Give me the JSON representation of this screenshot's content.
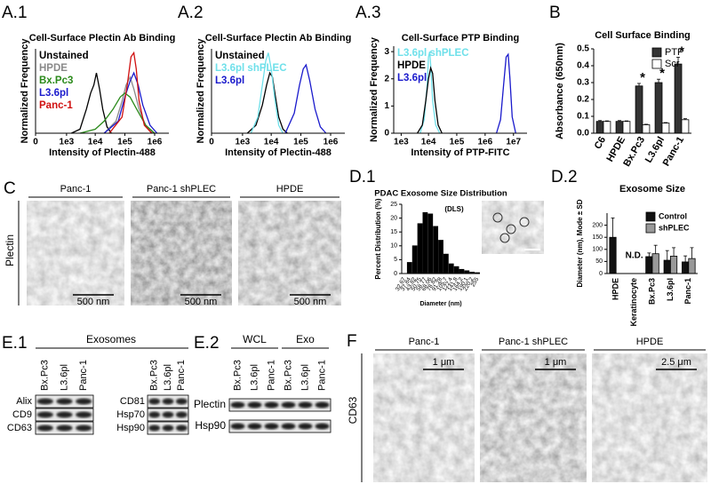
{
  "chart_data": [
    {
      "type": "line",
      "panel": "A.1",
      "title": "Cell-Surface Plectin Ab Binding",
      "x_label": "Intensity of Plectin-488",
      "y_label": "Normalized Frequency",
      "xscale": "symlog",
      "xlim": [
        0,
        3000000
      ],
      "xticks": [
        0,
        {
          "value": 1000,
          "label": "1e3"
        },
        {
          "value": 10000,
          "label": "1e4"
        },
        {
          "value": 100000,
          "label": "1e5"
        },
        {
          "value": 1000000,
          "label": "1e6"
        }
      ],
      "ylim": [
        0,
        1.05
      ],
      "legend": "upper left",
      "series": [
        {
          "name": "Unstained",
          "color": "#000000",
          "x": [
            1500,
            3000,
            5000,
            7000,
            9000,
            11000,
            14000,
            18000,
            25000,
            35000
          ],
          "values": [
            0,
            0.05,
            0.3,
            0.5,
            0.6,
            0.75,
            0.55,
            0.3,
            0.08,
            0
          ]
        },
        {
          "name": "HPDE",
          "color": "#8a8a8a",
          "x": [
            20000,
            50000,
            80000,
            110000,
            150000,
            200000,
            300000,
            500000,
            900000
          ],
          "values": [
            0,
            0.15,
            0.4,
            0.6,
            0.7,
            0.55,
            0.3,
            0.1,
            0
          ]
        },
        {
          "name": "Bx.Pc3",
          "color": "#2a8a1a",
          "x": [
            3000,
            10000,
            20000,
            40000,
            70000,
            100000,
            150000,
            250000,
            500000,
            1000000
          ],
          "values": [
            0,
            0.05,
            0.15,
            0.3,
            0.45,
            0.5,
            0.45,
            0.3,
            0.1,
            0
          ]
        },
        {
          "name": "L3.6pl",
          "color": "#1a1acc",
          "x": [
            20000,
            60000,
            100000,
            150000,
            200000,
            280000,
            400000,
            700000,
            1200000
          ],
          "values": [
            0,
            0.15,
            0.45,
            0.65,
            0.75,
            0.6,
            0.35,
            0.1,
            0
          ]
        },
        {
          "name": "Panc-1",
          "color": "#d01010",
          "x": [
            30000,
            80000,
            120000,
            160000,
            200000,
            240000,
            300000,
            450000,
            800000
          ],
          "values": [
            0,
            0.2,
            0.6,
            0.95,
            1.0,
            0.8,
            0.4,
            0.1,
            0
          ]
        }
      ]
    },
    {
      "type": "line",
      "panel": "A.2",
      "title": "Cell-Surface Plectin Ab Binding",
      "x_label": "Intensity of Plectin-488",
      "y_label": "Normalized Frequency",
      "xscale": "symlog",
      "xlim": [
        0,
        3000000
      ],
      "xticks": [
        0,
        {
          "value": 1000,
          "label": "1e3"
        },
        {
          "value": 10000,
          "label": "1e4"
        },
        {
          "value": 100000,
          "label": "1e5"
        },
        {
          "value": 1000000,
          "label": "1e6"
        }
      ],
      "ylim": [
        0,
        1.05
      ],
      "legend": "upper left",
      "series": [
        {
          "name": "Unstained",
          "color": "#000000",
          "x": [
            1500,
            3000,
            5000,
            7000,
            9000,
            11000,
            14000,
            18000,
            25000,
            35000
          ],
          "values": [
            0,
            0.1,
            0.35,
            0.6,
            0.75,
            0.7,
            0.45,
            0.2,
            0.05,
            0
          ]
        },
        {
          "name": "L3.6pl shPLEC",
          "color": "#6fe0ea",
          "x": [
            2000,
            3500,
            5000,
            6500,
            8000,
            10000,
            13000,
            18000,
            25000
          ],
          "values": [
            0,
            0.2,
            0.6,
            0.9,
            1.0,
            0.8,
            0.45,
            0.1,
            0
          ]
        },
        {
          "name": "L3.6pl",
          "color": "#1a1acc",
          "x": [
            30000,
            60000,
            90000,
            120000,
            150000,
            200000,
            300000,
            450000,
            700000
          ],
          "values": [
            0,
            0.25,
            0.6,
            0.8,
            0.85,
            0.65,
            0.3,
            0.08,
            0
          ]
        }
      ]
    },
    {
      "type": "line",
      "panel": "A.3",
      "title": "Cell-Surface PTP Binding",
      "x_label": "Intensity of PTP-FITC",
      "y_label": "Normalized Frequency",
      "xscale": "symlog",
      "xlim": [
        500,
        30000000
      ],
      "xticks": [
        {
          "value": 1000,
          "label": "1e3"
        },
        {
          "value": 10000,
          "label": "1e4"
        },
        {
          "value": 100000,
          "label": "1e5"
        },
        {
          "value": 1000000,
          "label": "1e6"
        },
        {
          "value": 10000000,
          "label": "1e7"
        }
      ],
      "ylim": [
        0,
        3.2
      ],
      "yticks": [
        0,
        1,
        2,
        3
      ],
      "legend": "upper left",
      "series": [
        {
          "name": "L3.6pl shPLEC",
          "color": "#6fe0ea",
          "x": [
            5000,
            7000,
            9000,
            10000,
            11000,
            12000,
            14000,
            18000,
            25000
          ],
          "values": [
            0,
            0.5,
            1.8,
            2.8,
            3.0,
            2.5,
            1.2,
            0.3,
            0
          ]
        },
        {
          "name": "HPDE",
          "color": "#000000",
          "x": [
            4000,
            6000,
            8000,
            10000,
            12000,
            14000,
            17000,
            22000,
            30000
          ],
          "values": [
            0,
            0.3,
            1.2,
            2.0,
            2.4,
            2.2,
            1.2,
            0.3,
            0
          ]
        },
        {
          "name": "L3.6pl",
          "color": "#1a1acc",
          "x": [
            2500000,
            3500000,
            4500000,
            5500000,
            6500000,
            7500000,
            9000000,
            12000000
          ],
          "values": [
            0,
            0.5,
            1.8,
            2.8,
            2.9,
            2.0,
            0.6,
            0
          ]
        }
      ]
    },
    {
      "type": "bar",
      "panel": "B",
      "title": "Cell Surface Binding",
      "y_label": "Absorbance (650nm)",
      "categories": [
        "C6",
        "HPDE",
        "Bx.Pc3",
        "L3.6pl",
        "Panc-1"
      ],
      "ylim": [
        0,
        0.5
      ],
      "yticks": [
        {
          "value": 0,
          "label": "0.0"
        },
        0.1,
        0.2,
        0.3,
        0.4,
        0.5
      ],
      "legend": "upper right",
      "category_notes": [
        null,
        null,
        "*",
        "*",
        "*"
      ],
      "series": [
        {
          "name": "PTP",
          "color": "#333333",
          "values": [
            0.07,
            0.07,
            0.28,
            0.3,
            0.41
          ],
          "errors": [
            0.005,
            0.005,
            0.015,
            0.02,
            0.04
          ]
        },
        {
          "name": "Scr",
          "color": "#ffffff",
          "values": [
            0.07,
            0.07,
            0.05,
            0.06,
            0.08
          ],
          "errors": [
            0.003,
            0.003,
            0.003,
            0.003,
            0.006
          ]
        }
      ]
    },
    {
      "type": "bar",
      "panel": "D.1",
      "title": "PDAC Exosome Size Distribution",
      "subtitle": "(DLS)",
      "x_label": "Diameter (nm)",
      "y_label": "Percent Distribution (%)",
      "categories": [
        "32.67",
        "37.84",
        "43.82",
        "50.75",
        "58.77",
        "68.06",
        "78.82",
        "91.28",
        "105.7",
        "122.4",
        "141.8",
        "164.2",
        "190.1",
        "220.2",
        "255"
      ],
      "values": [
        0,
        4,
        10,
        18,
        22,
        21.5,
        17,
        12,
        7,
        3.5,
        2.5,
        1.5,
        1,
        0.5,
        0.3
      ],
      "color": "#000000",
      "ylim": [
        0,
        25
      ],
      "yticks": [
        0,
        5,
        10,
        15,
        20,
        25
      ]
    },
    {
      "type": "bar",
      "panel": "D.2",
      "title": "Exosome Size",
      "y_label": "Diameter (nm), Mode ± SD",
      "categories": [
        "HPDE",
        "Keratinocyte",
        "Bx.Pc3",
        "L3.6pl",
        "Panc-1"
      ],
      "ylim": [
        0,
        250
      ],
      "yticks": [
        0,
        50,
        100,
        150,
        200
      ],
      "legend": "upper right",
      "category_notes": [
        null,
        "N.D.",
        null,
        null,
        null
      ],
      "series": [
        {
          "name": "Control",
          "color": "#111111",
          "values": [
            150,
            null,
            70,
            55,
            48
          ],
          "errors": [
            80,
            null,
            15,
            40,
            25
          ]
        },
        {
          "name": "shPLEC",
          "color": "#999999",
          "values": [
            null,
            null,
            82,
            72,
            62
          ],
          "errors": [
            null,
            null,
            35,
            35,
            45
          ]
        }
      ]
    }
  ],
  "micrographs": {
    "C": {
      "panel": "C",
      "stain": "Plectin",
      "images": [
        {
          "title": "Panc-1",
          "scale": "500 nm"
        },
        {
          "title": "Panc-1 shPLEC",
          "scale": "500 nm"
        },
        {
          "title": "HPDE",
          "scale": "500 nm"
        }
      ]
    },
    "F": {
      "panel": "F",
      "stain": "CD63",
      "images": [
        {
          "title": "Panc-1",
          "scale": "1 μm"
        },
        {
          "title": "Panc-1 shPLEC",
          "scale": "1 μm"
        },
        {
          "title": "HPDE",
          "scale": "2.5 μm"
        }
      ]
    }
  },
  "blots": {
    "E1": {
      "panel": "E.1",
      "header": "Exosomes",
      "blocks": [
        {
          "lanes": [
            "Bx.Pc3",
            "L3.6pl",
            "Panc-1"
          ],
          "rows": [
            "Alix",
            "CD9",
            "CD63"
          ]
        },
        {
          "lanes": [
            "Bx.Pc3",
            "L3.6pl",
            "Panc-1"
          ],
          "rows": [
            "CD81",
            "Hsp70",
            "Hsp90"
          ]
        }
      ]
    },
    "E2": {
      "panel": "E.2",
      "groups": [
        {
          "label": "WCL",
          "lanes": [
            "Bx.Pc3",
            "L3.6pl",
            "Panc-1"
          ]
        },
        {
          "label": "Exo",
          "lanes": [
            "Bx.Pc3",
            "L3.6pl",
            "Panc-1"
          ]
        }
      ],
      "rows": [
        "Plectin",
        "Hsp90"
      ]
    }
  }
}
